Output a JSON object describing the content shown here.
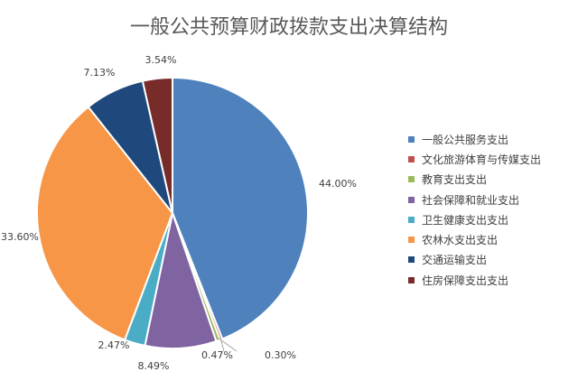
{
  "chart_data": {
    "type": "pie",
    "title": "一般公共预算财政拨款支出决算结构",
    "legend_position": "right",
    "slices": [
      {
        "name": "一般公共服务支出",
        "value": 44.0,
        "label": "44.00%",
        "color": "#4F81BD"
      },
      {
        "name": "文化旅游体育与传媒支出",
        "value": 0.3,
        "label": "0.30%",
        "color": "#C0504D"
      },
      {
        "name": "教育支出支出",
        "value": 0.47,
        "label": "0.47%",
        "color": "#9BBB59"
      },
      {
        "name": "社会保障和就业支出",
        "value": 8.49,
        "label": "8.49%",
        "color": "#8064A2"
      },
      {
        "name": "卫生健康支出支出",
        "value": 2.47,
        "label": "2.47%",
        "color": "#4BACC6"
      },
      {
        "name": "农林水支出支出",
        "value": 33.6,
        "label": "33.60%",
        "color": "#F79646"
      },
      {
        "name": "交通运输支出",
        "value": 7.13,
        "label": "7.13%",
        "color": "#1F497D"
      },
      {
        "name": "住房保障支出支出",
        "value": 3.54,
        "label": "3.54%",
        "color": "#772C2A"
      }
    ]
  }
}
